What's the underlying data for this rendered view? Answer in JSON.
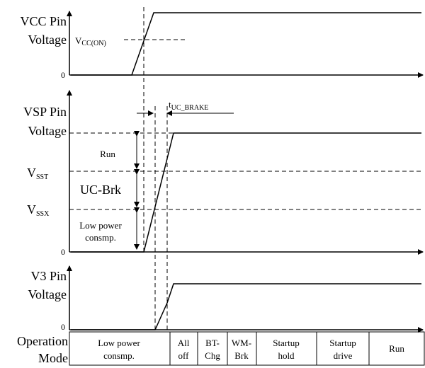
{
  "vcc": {
    "title_line1": "VCC Pin",
    "title_line2": "Voltage",
    "level_main": "V",
    "level_sub": "CC(ON)",
    "zero": "0"
  },
  "vsp": {
    "title_line1": "VSP Pin",
    "title_line2": "Voltage",
    "vsst_main": "V",
    "vsst_sub": "SST",
    "vssx_main": "V",
    "vssx_sub": "SSX",
    "zero": "0",
    "region_run": "Run",
    "region_ucbrk": "UC-Brk",
    "region_lowpower_line1": "Low power",
    "region_lowpower_line2": "consmp.",
    "tbrake_main": "t",
    "tbrake_sub": "UC_BRAKE"
  },
  "v3": {
    "title_line1": "V3 Pin",
    "title_line2": "Voltage",
    "zero": "0"
  },
  "mode": {
    "title_line1": "Operation",
    "title_line2": "Mode",
    "cells": [
      {
        "line1": "Low power",
        "line2": "consmp."
      },
      {
        "line1": "All",
        "line2": "off"
      },
      {
        "line1": "BT-",
        "line2": "Chg"
      },
      {
        "line1": "WM-",
        "line2": "Brk"
      },
      {
        "line1": "Startup",
        "line2": "hold"
      },
      {
        "line1": "Startup",
        "line2": "drive"
      },
      {
        "line1": "Run",
        "line2": ""
      }
    ]
  }
}
